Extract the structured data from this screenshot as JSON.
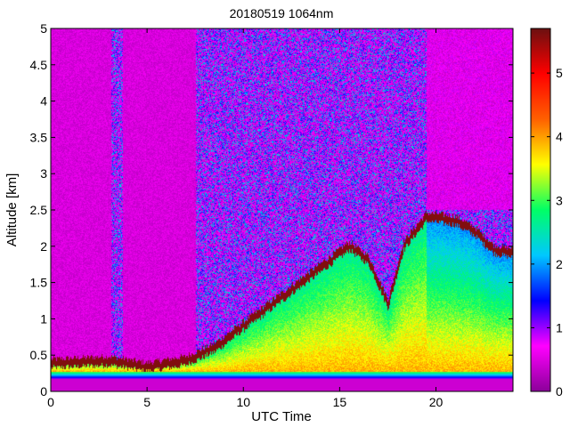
{
  "chart_data": {
    "type": "heatmap",
    "title": "20180519 1064nm",
    "xlabel": "UTC Time",
    "ylabel": "Altitude [km]",
    "xlim": [
      0,
      24
    ],
    "ylim": [
      0,
      5
    ],
    "x_ticks": [
      0,
      5,
      10,
      15,
      20
    ],
    "y_ticks": [
      0,
      0.5,
      1,
      1.5,
      2,
      2.5,
      3,
      3.5,
      4,
      4.5,
      5
    ],
    "y_tick_labels": [
      "0",
      "0.5",
      "1",
      "1.5",
      "2",
      "2.5",
      "3",
      "3.5",
      "4",
      "4.5",
      "5"
    ],
    "colorbar": {
      "range": [
        0,
        5.7
      ],
      "ticks": [
        0,
        1,
        2,
        3,
        4,
        5
      ],
      "colormap": [
        "#8b0099",
        "#ff00ff",
        "#0000ff",
        "#00c8ff",
        "#00ff66",
        "#ffff00",
        "#ff6000",
        "#ff0000",
        "#6b1010"
      ],
      "location": "right"
    },
    "features": {
      "boundary_layer_top_km": [
        [
          0,
          0.38
        ],
        [
          3,
          0.42
        ],
        [
          5,
          0.33
        ],
        [
          7,
          0.42
        ],
        [
          8.5,
          0.6
        ],
        [
          10,
          0.9
        ],
        [
          12,
          1.3
        ],
        [
          14,
          1.7
        ],
        [
          15.5,
          2.0
        ],
        [
          16.5,
          1.8
        ],
        [
          17.5,
          1.2
        ],
        [
          18.3,
          2.0
        ],
        [
          19.5,
          2.4
        ],
        [
          21,
          2.35
        ],
        [
          22,
          2.2
        ],
        [
          23,
          1.95
        ],
        [
          24,
          1.9
        ]
      ],
      "surface_layer_km": [
        0.18,
        0.28
      ]
    }
  }
}
